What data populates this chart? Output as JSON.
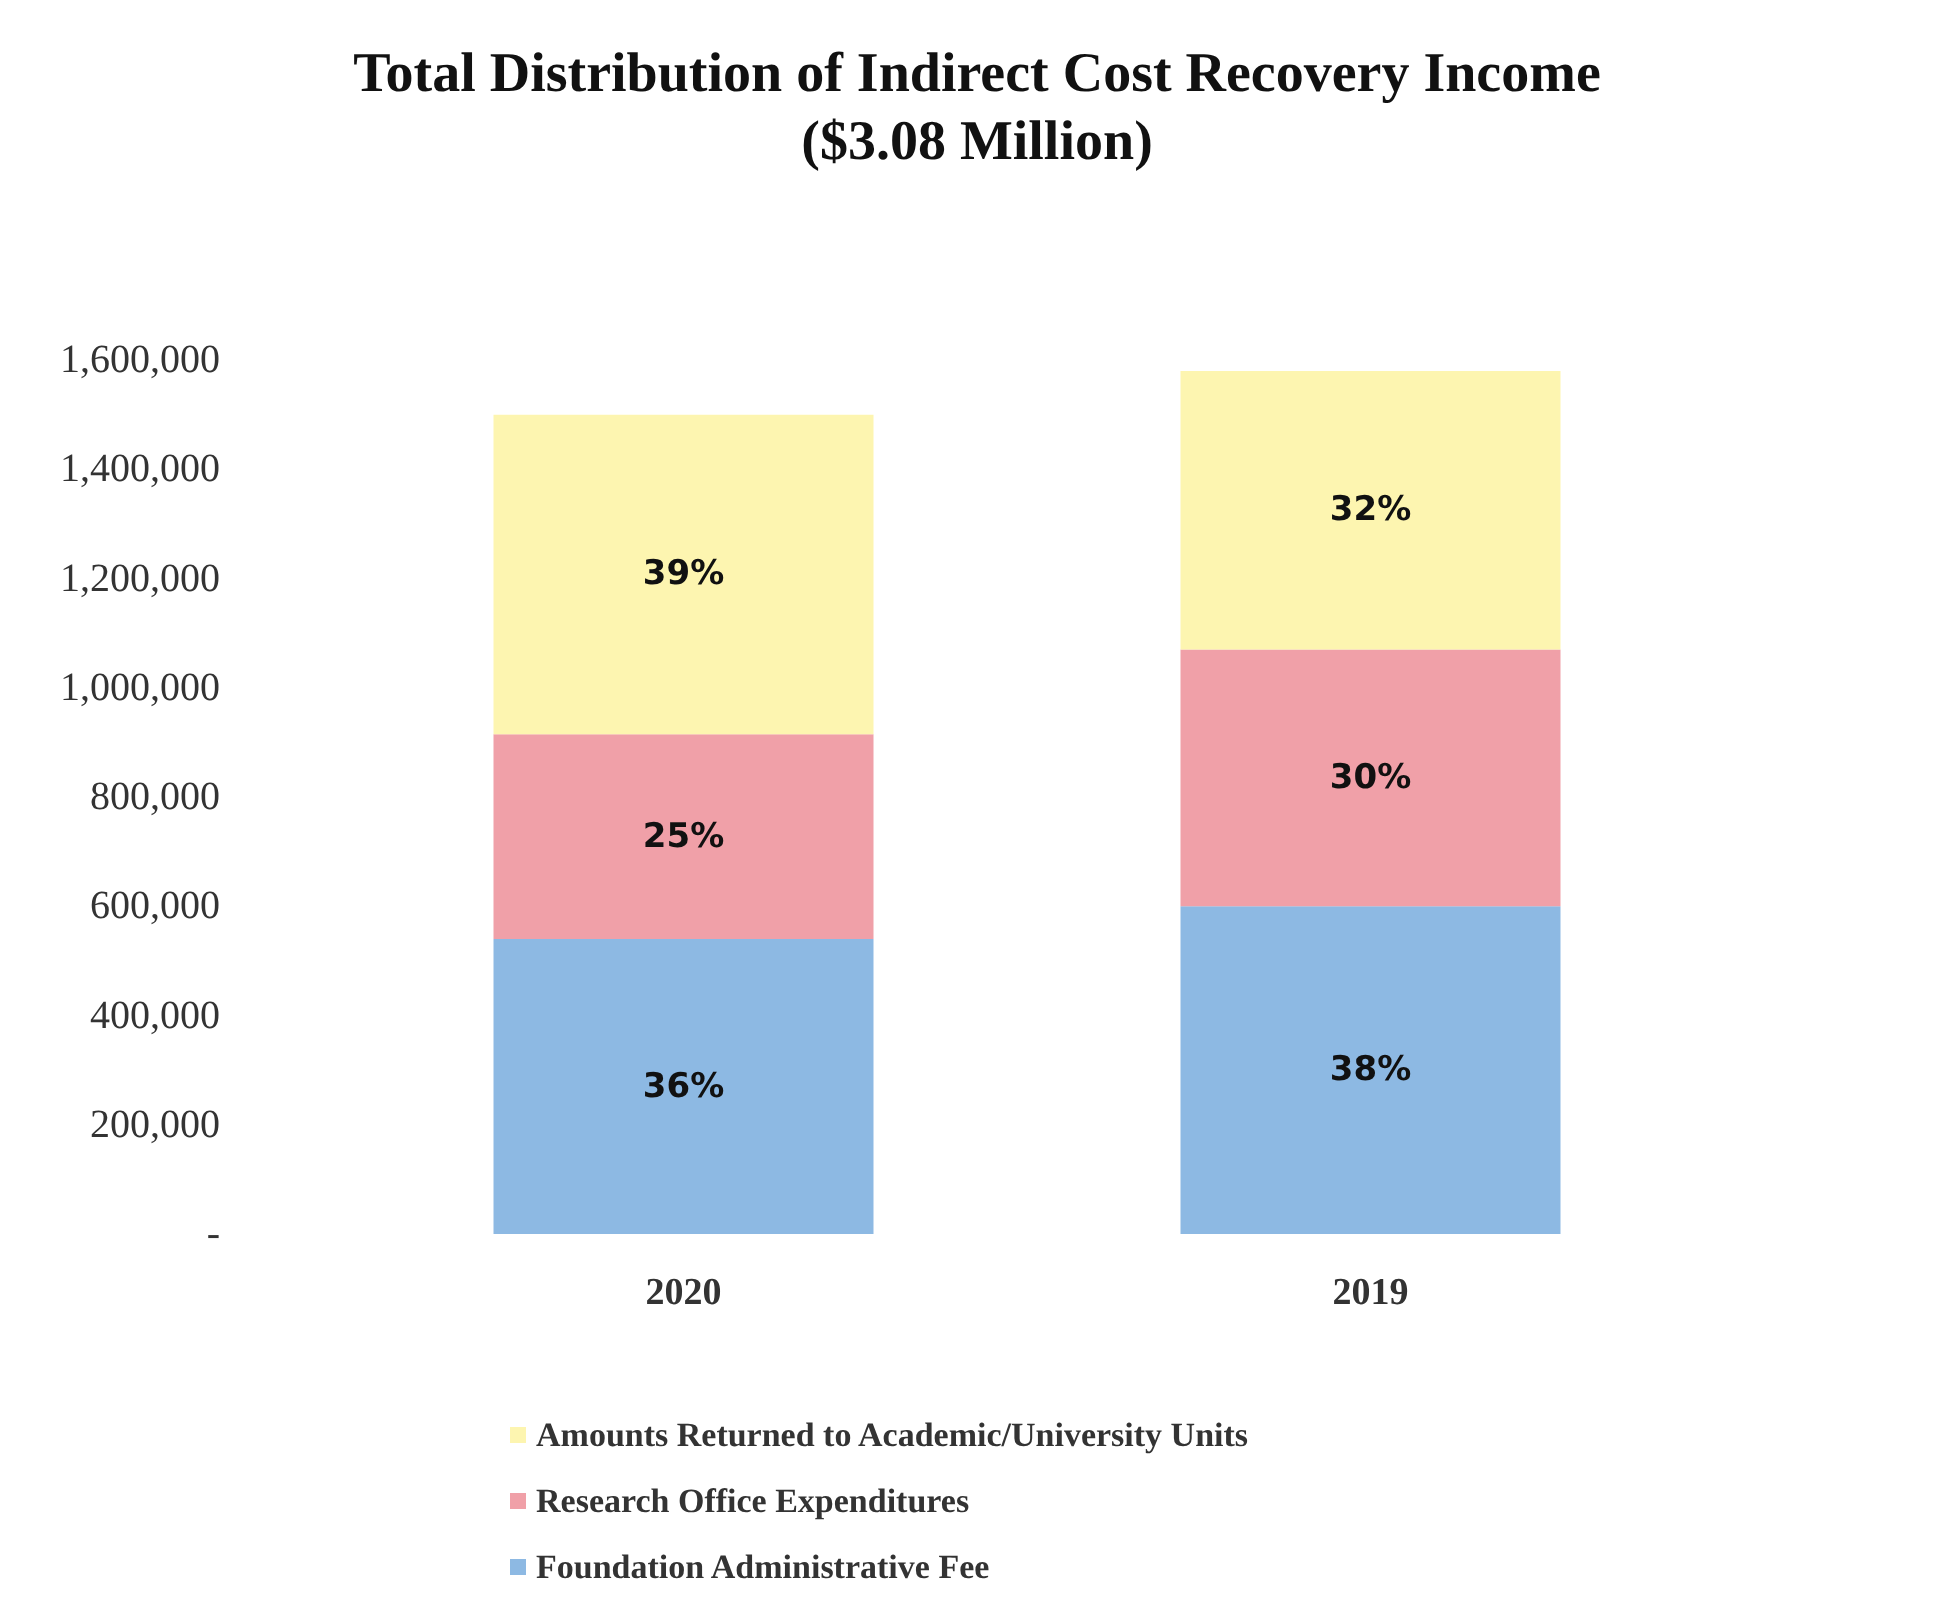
{
  "chart_data": {
    "type": "bar",
    "title": "Total Distribution of Indirect Cost Recovery Income",
    "subtitle": "($3.08 Million)",
    "categories": [
      "2020",
      "2019"
    ],
    "stacked": true,
    "series": [
      {
        "name": "Foundation Administrative Fee",
        "color": "#8db9e3",
        "values": [
          540000,
          600000
        ]
      },
      {
        "name": "Research Office Expenditures",
        "color": "#f0a0a8",
        "values": [
          375000,
          470000
        ]
      },
      {
        "name": "Amounts Returned to Academic/University Units",
        "color": "#fdf5b0",
        "values": [
          585000,
          510000
        ]
      }
    ],
    "annotations": [
      "36%",
      "25%",
      "39%",
      "38%",
      "30%",
      "32%"
    ],
    "ylim": [
      0,
      1600000
    ],
    "yticks": [
      {
        "value": 0,
        "label": "-"
      },
      {
        "value": 200000,
        "label": "200,000"
      },
      {
        "value": 400000,
        "label": "400,000"
      },
      {
        "value": 600000,
        "label": "600,000"
      },
      {
        "value": 800000,
        "label": "800,000"
      },
      {
        "value": 1000000,
        "label": "1,000,000"
      },
      {
        "value": 1200000,
        "label": "1,200,000"
      },
      {
        "value": 1400000,
        "label": "1,400,000"
      },
      {
        "value": 1600000,
        "label": "1,600,000"
      }
    ],
    "grid": false,
    "legend": "bottom"
  }
}
